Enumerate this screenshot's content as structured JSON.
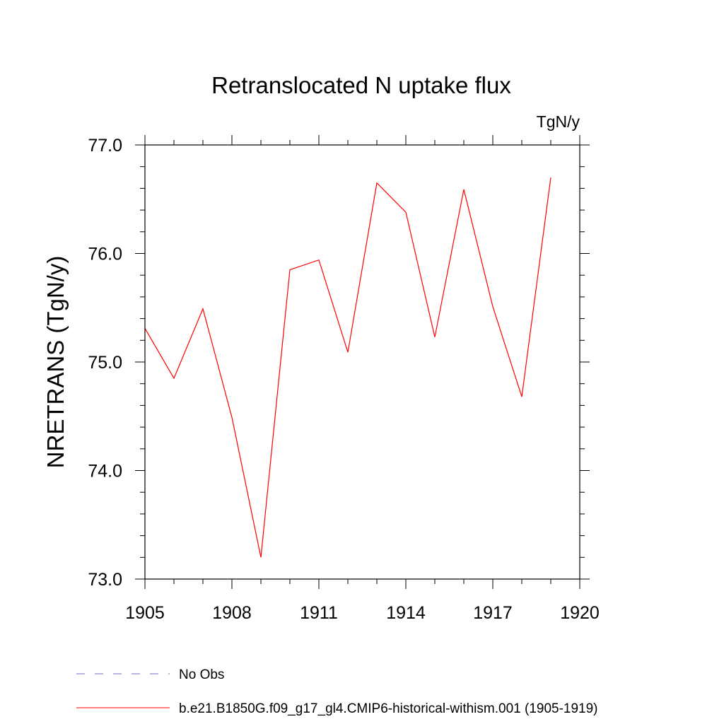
{
  "chart_data": {
    "type": "line",
    "title": "Retranslocated N uptake flux",
    "units_label": "TgN/y",
    "ylabel": "NRETRANS  (TgN/y)",
    "xlabel": "",
    "xlim": [
      1905,
      1920
    ],
    "ylim": [
      73.0,
      77.0
    ],
    "x_ticks": [
      1905,
      1908,
      1911,
      1914,
      1917,
      1920
    ],
    "x_tick_labels": [
      "1905",
      "1908",
      "1911",
      "1914",
      "1917",
      "1920"
    ],
    "y_ticks": [
      73.0,
      74.0,
      75.0,
      76.0,
      77.0
    ],
    "y_tick_labels": [
      "73.0",
      "74.0",
      "75.0",
      "76.0",
      "77.0"
    ],
    "x_minor_step": 1,
    "y_minor_step": 0.2,
    "grid": false,
    "legend_placement": "bottom-left",
    "series": [
      {
        "name": "b.e21.B1850G.f09_g17_gl4.CMIP6-historical-withism.001 (1905-1919)",
        "color": "#ff0000",
        "dash": "solid",
        "x": [
          1905,
          1906,
          1907,
          1908,
          1909,
          1910,
          1911,
          1912,
          1913,
          1914,
          1915,
          1916,
          1917,
          1918,
          1919
        ],
        "y": [
          75.31,
          74.85,
          75.49,
          74.49,
          73.2,
          75.85,
          75.94,
          75.09,
          76.65,
          76.38,
          75.23,
          76.59,
          75.51,
          74.68,
          76.7
        ]
      }
    ],
    "legend": [
      {
        "label": "No Obs",
        "color": "#7b68c8",
        "dash": "dashed"
      },
      {
        "label": "b.e21.B1850G.f09_g17_gl4.CMIP6-historical-withism.001 (1905-1919)",
        "color": "#ff0000",
        "dash": "solid"
      }
    ]
  }
}
